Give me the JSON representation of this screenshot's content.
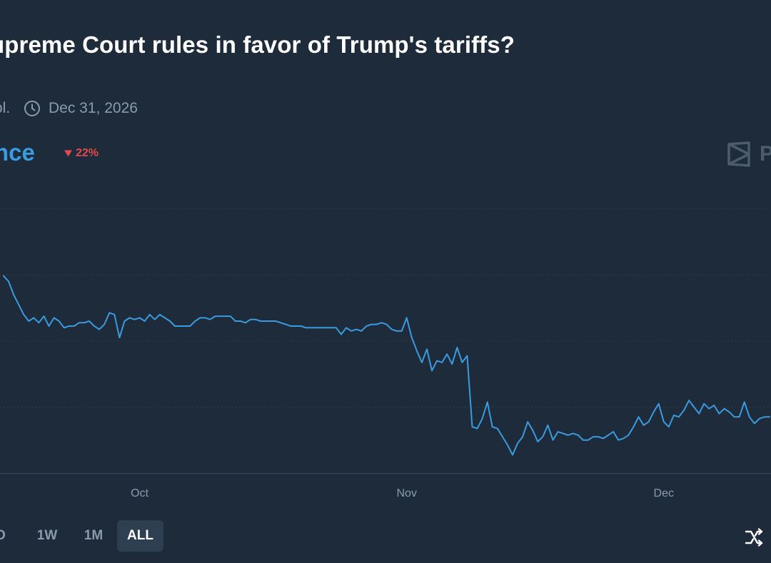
{
  "header": {
    "title": "upreme Court rules in favor of Trump's tariffs?",
    "volume_label": "ol.",
    "end_date": "Dec 31, 2026",
    "clock_icon": "clock-icon"
  },
  "outcome": {
    "label": "nce",
    "change": "22%",
    "change_icon": "triangle-down-icon",
    "color": "#3a9be0",
    "change_color": "#e5484d"
  },
  "watermark": {
    "text": "P",
    "icon": "polymarket-logo-icon"
  },
  "ranges": {
    "items": [
      {
        "label": "D",
        "active": false
      },
      {
        "label": "1W",
        "active": false
      },
      {
        "label": "1M",
        "active": false
      },
      {
        "label": "ALL",
        "active": true
      }
    ],
    "shuffle_icon": "shuffle-icon"
  },
  "chart_data": {
    "type": "line",
    "title": "",
    "xlabel": "",
    "ylabel": "",
    "x_ticks": [
      {
        "label": "Oct",
        "t": 37
      },
      {
        "label": "Nov",
        "t": 90
      },
      {
        "label": "Dec",
        "t": 141
      }
    ],
    "x_range": [
      10,
      162
    ],
    "ylim": [
      0,
      100
    ],
    "gridlines": [
      20,
      40,
      60,
      80
    ],
    "series": [
      {
        "name": "nce",
        "color": "#3a9be0",
        "points": [
          [
            10,
            59.7
          ],
          [
            11,
            58
          ],
          [
            12,
            54
          ],
          [
            13,
            51
          ],
          [
            14,
            48
          ],
          [
            15,
            46
          ],
          [
            16,
            47
          ],
          [
            17,
            45.5
          ],
          [
            18,
            47.5
          ],
          [
            19,
            44.5
          ],
          [
            20,
            47
          ],
          [
            21,
            46
          ],
          [
            22,
            44
          ],
          [
            23,
            44.5
          ],
          [
            24,
            44.5
          ],
          [
            25,
            45.5
          ],
          [
            26,
            45.5
          ],
          [
            27,
            46
          ],
          [
            28,
            44.5
          ],
          [
            29,
            43.5
          ],
          [
            30,
            45
          ],
          [
            31,
            48.5
          ],
          [
            32,
            48
          ],
          [
            33,
            41
          ],
          [
            34,
            46
          ],
          [
            35,
            47
          ],
          [
            36,
            46.5
          ],
          [
            37,
            47
          ],
          [
            38,
            46
          ],
          [
            39,
            48
          ],
          [
            40,
            46.5
          ],
          [
            41,
            48
          ],
          [
            42,
            47
          ],
          [
            43,
            46
          ],
          [
            44,
            44.5
          ],
          [
            45,
            44.5
          ],
          [
            46,
            44.5
          ],
          [
            47,
            44.5
          ],
          [
            48,
            46
          ],
          [
            49,
            47
          ],
          [
            50,
            47
          ],
          [
            51,
            46.5
          ],
          [
            52,
            47.5
          ],
          [
            53,
            47.5
          ],
          [
            54,
            47.5
          ],
          [
            55,
            47.5
          ],
          [
            56,
            46
          ],
          [
            57,
            46
          ],
          [
            58,
            45.5
          ],
          [
            59,
            46.5
          ],
          [
            60,
            46.5
          ],
          [
            61,
            46
          ],
          [
            62,
            46
          ],
          [
            63,
            46
          ],
          [
            64,
            46
          ],
          [
            65,
            45.5
          ],
          [
            66,
            45
          ],
          [
            67,
            44.5
          ],
          [
            68,
            44.5
          ],
          [
            69,
            44.5
          ],
          [
            70,
            44
          ],
          [
            71,
            44
          ],
          [
            72,
            44
          ],
          [
            73,
            44
          ],
          [
            74,
            44
          ],
          [
            75,
            44
          ],
          [
            76,
            44
          ],
          [
            77,
            42
          ],
          [
            78,
            44
          ],
          [
            79,
            43
          ],
          [
            80,
            43.5
          ],
          [
            81,
            43
          ],
          [
            82,
            44.5
          ],
          [
            83,
            45
          ],
          [
            84,
            45
          ],
          [
            85,
            45.5
          ],
          [
            86,
            45
          ],
          [
            87,
            43.5
          ],
          [
            88,
            43
          ],
          [
            89,
            43
          ],
          [
            90,
            47
          ],
          [
            91,
            41
          ],
          [
            92,
            37
          ],
          [
            93,
            33.5
          ],
          [
            94,
            37.5
          ],
          [
            95,
            31
          ],
          [
            96,
            34
          ],
          [
            97,
            33.5
          ],
          [
            98,
            36
          ],
          [
            99,
            33
          ],
          [
            100,
            38
          ],
          [
            101,
            33.5
          ],
          [
            102,
            35.5
          ],
          [
            103,
            14
          ],
          [
            104,
            13.5
          ],
          [
            105,
            16.5
          ],
          [
            106,
            21.5
          ],
          [
            107,
            14
          ],
          [
            108,
            13.5
          ],
          [
            109,
            11
          ],
          [
            110,
            8.5
          ],
          [
            111,
            5.5
          ],
          [
            112,
            9
          ],
          [
            113,
            11
          ],
          [
            114,
            15.5
          ],
          [
            115,
            13
          ],
          [
            116,
            9.5
          ],
          [
            117,
            11
          ],
          [
            118,
            14.5
          ],
          [
            119,
            10
          ],
          [
            120,
            12.5
          ],
          [
            121,
            12
          ],
          [
            122,
            11.5
          ],
          [
            123,
            12
          ],
          [
            124,
            11.5
          ],
          [
            125,
            10
          ],
          [
            126,
            10
          ],
          [
            127,
            11
          ],
          [
            128,
            11
          ],
          [
            129,
            10.5
          ],
          [
            130,
            11.5
          ],
          [
            131,
            12.5
          ],
          [
            132,
            10
          ],
          [
            133,
            10.5
          ],
          [
            134,
            11.5
          ],
          [
            135,
            14
          ],
          [
            136,
            17
          ],
          [
            137,
            14.5
          ],
          [
            138,
            15.5
          ],
          [
            139,
            18.5
          ],
          [
            140,
            21
          ],
          [
            141,
            15.5
          ],
          [
            142,
            14
          ],
          [
            143,
            17.5
          ],
          [
            144,
            17
          ],
          [
            145,
            19
          ],
          [
            146,
            22
          ],
          [
            147,
            20
          ],
          [
            148,
            18
          ],
          [
            149,
            21
          ],
          [
            150,
            19.5
          ],
          [
            151,
            20.5
          ],
          [
            152,
            18
          ],
          [
            153,
            19.5
          ],
          [
            154,
            18.5
          ],
          [
            155,
            17
          ],
          [
            156,
            17
          ],
          [
            157,
            21.5
          ],
          [
            158,
            17
          ],
          [
            159,
            15
          ],
          [
            160,
            16.5
          ],
          [
            161,
            17
          ],
          [
            162,
            17
          ]
        ]
      }
    ]
  }
}
